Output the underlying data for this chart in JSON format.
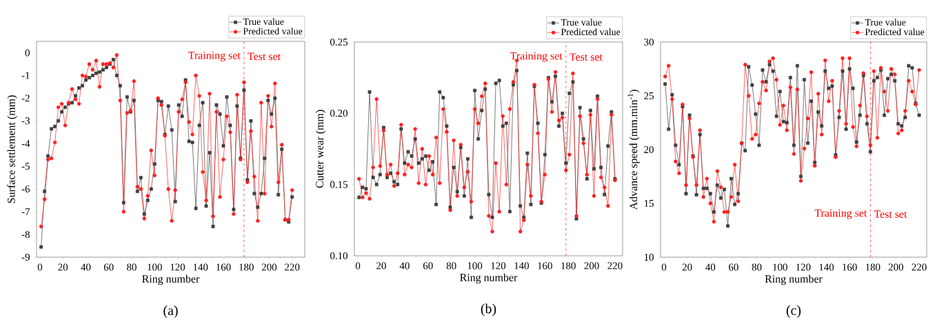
{
  "chart_data": [
    {
      "type": "line",
      "xlabel": "Ring number",
      "ylabel": "Surface settlement (mm)",
      "x": [
        1,
        4,
        7,
        10,
        13,
        16,
        19,
        22,
        25,
        28,
        31,
        34,
        37,
        40,
        43,
        46,
        49,
        52,
        55,
        58,
        61,
        64,
        67,
        70,
        73,
        76,
        79,
        82,
        85,
        88,
        91,
        94,
        97,
        100,
        103,
        106,
        109,
        112,
        115,
        118,
        121,
        124,
        127,
        130,
        133,
        136,
        139,
        142,
        145,
        148,
        151,
        154,
        157,
        160,
        163,
        166,
        169,
        172,
        175,
        178,
        181,
        184,
        187,
        190,
        193,
        196,
        199,
        202,
        205,
        208,
        211,
        214,
        217,
        220
      ],
      "series": [
        {
          "name": "True value",
          "color": "#404040",
          "marker": "square",
          "values": [
            -8.55,
            -6.1,
            -4.55,
            -3.35,
            -3.25,
            -3.0,
            -2.6,
            -2.4,
            -2.25,
            -2.2,
            -1.9,
            -1.55,
            -1.45,
            -1.2,
            -1.1,
            -1.0,
            -0.9,
            -0.85,
            -0.75,
            -0.65,
            -0.5,
            -0.3,
            -1.0,
            -1.45,
            -6.6,
            -1.95,
            -2.6,
            -2.1,
            -6.1,
            -5.5,
            -7.1,
            -6.5,
            -6.0,
            -4.9,
            -2.1,
            -2.15,
            -3.6,
            -2.35,
            -3.4,
            -6.55,
            -2.3,
            -2.8,
            -1.2,
            -3.9,
            -3.95,
            -6.85,
            -3.2,
            -2.2,
            -6.75,
            -4.4,
            -7.65,
            -2.3,
            -2.7,
            -4.1,
            -1.95,
            -3.2,
            -6.9,
            -2.35,
            -4.65,
            -1.65,
            -5.6,
            -3.0,
            -6.2,
            -6.8,
            -6.2,
            -4.65,
            -2.1,
            -2.7,
            -2.0,
            -6.25,
            -4.25,
            -7.35,
            -7.45,
            -6.35
          ]
        },
        {
          "name": "Predicted value",
          "color": "#ff2020",
          "marker": "circle",
          "values": [
            -7.65,
            -6.45,
            -4.7,
            -4.65,
            -3.95,
            -2.4,
            -2.25,
            -3.2,
            -2.2,
            -1.6,
            -2.05,
            -2.25,
            -1.0,
            -1.05,
            -0.5,
            -0.75,
            -0.35,
            -1.5,
            -0.5,
            -0.5,
            -0.45,
            -0.65,
            -0.1,
            -2.1,
            -7.0,
            -2.65,
            -2.55,
            -1.25,
            -5.9,
            -6.0,
            -7.3,
            -6.3,
            -4.3,
            -5.4,
            -2.0,
            -2.3,
            -3.65,
            -6.0,
            -7.4,
            -6.05,
            -2.6,
            -2.05,
            -1.3,
            -3.05,
            -3.6,
            -1.0,
            -1.9,
            -5.25,
            -6.5,
            -1.8,
            -7.2,
            -2.6,
            -6.35,
            -4.7,
            -2.8,
            -3.5,
            -7.1,
            -1.85,
            -4.7,
            -1.3,
            -5.7,
            -3.45,
            -5.45,
            -7.4,
            -2.2,
            -6.2,
            -1.9,
            -3.25,
            -1.35,
            -5.7,
            -4.05,
            -7.35,
            -7.35,
            -6.05
          ]
        }
      ],
      "xlim": [
        -3,
        231
      ],
      "ylim": [
        -9,
        0.5
      ],
      "xticks": [
        0,
        20,
        40,
        60,
        80,
        100,
        120,
        140,
        160,
        180,
        200,
        220
      ],
      "yticks": [
        -9,
        -8,
        -7,
        -6,
        -5,
        -4,
        -3,
        -2,
        -1,
        0
      ],
      "ref_lines": [
        {
          "axis": "x",
          "value": 178,
          "color": "#ff2020",
          "line_style": "dashdot"
        }
      ],
      "annotations": [
        "Training set",
        "Test set",
        "(a)"
      ],
      "legend": "top right"
    },
    {
      "type": "line",
      "xlabel": "Ring number",
      "ylabel": "Cutter wear (mm)",
      "x": [
        1,
        4,
        7,
        10,
        13,
        16,
        19,
        22,
        25,
        28,
        31,
        34,
        37,
        40,
        43,
        46,
        49,
        52,
        55,
        58,
        61,
        64,
        67,
        70,
        73,
        76,
        79,
        82,
        85,
        88,
        91,
        94,
        97,
        100,
        103,
        106,
        109,
        112,
        115,
        118,
        121,
        124,
        127,
        130,
        133,
        136,
        139,
        142,
        145,
        148,
        151,
        154,
        157,
        160,
        163,
        166,
        169,
        172,
        175,
        178,
        181,
        184,
        187,
        190,
        193,
        196,
        199,
        202,
        205,
        208,
        211,
        214,
        217,
        220
      ],
      "series": [
        {
          "name": "True value",
          "color": "#404040",
          "marker": "square",
          "values": [
            0.141,
            0.148,
            0.147,
            0.215,
            0.155,
            0.15,
            0.157,
            0.19,
            0.155,
            0.158,
            0.152,
            0.15,
            0.189,
            0.165,
            0.173,
            0.17,
            0.182,
            0.165,
            0.168,
            0.17,
            0.16,
            0.166,
            0.136,
            0.215,
            0.211,
            0.191,
            0.134,
            0.162,
            0.145,
            0.176,
            0.142,
            0.168,
            0.127,
            0.216,
            0.182,
            0.202,
            0.217,
            0.143,
            0.127,
            0.221,
            0.223,
            0.191,
            0.193,
            0.131,
            0.22,
            0.23,
            0.135,
            0.127,
            0.172,
            0.136,
            0.219,
            0.193,
            0.137,
            0.171,
            0.225,
            0.208,
            0.226,
            0.191,
            0.2,
            0.165,
            0.214,
            0.222,
            0.126,
            0.204,
            0.182,
            0.154,
            0.202,
            0.161,
            0.212,
            0.162,
            0.143,
            0.177,
            0.201,
            0.154
          ]
        },
        {
          "name": "Predicted value",
          "color": "#ff2020",
          "marker": "circle",
          "values": [
            0.154,
            0.141,
            0.144,
            0.14,
            0.162,
            0.21,
            0.163,
            0.188,
            0.157,
            0.164,
            0.149,
            0.158,
            0.192,
            0.157,
            0.164,
            0.162,
            0.189,
            0.151,
            0.175,
            0.15,
            0.17,
            0.157,
            0.183,
            0.151,
            0.203,
            0.187,
            0.132,
            0.181,
            0.142,
            0.178,
            0.148,
            0.159,
            0.138,
            0.203,
            0.193,
            0.212,
            0.221,
            0.128,
            0.117,
            0.165,
            0.131,
            0.198,
            0.15,
            0.203,
            0.222,
            0.237,
            0.117,
            0.125,
            0.164,
            0.142,
            0.22,
            0.186,
            0.138,
            0.157,
            0.224,
            0.201,
            0.229,
            0.195,
            0.197,
            0.16,
            0.171,
            0.228,
            0.128,
            0.198,
            0.179,
            0.157,
            0.199,
            0.142,
            0.21,
            0.155,
            0.148,
            0.135,
            0.199,
            0.153
          ]
        }
      ],
      "xlim": [
        -3,
        226.5
      ],
      "ylim": [
        0.1,
        0.25
      ],
      "xticks": [
        0,
        20,
        40,
        60,
        80,
        100,
        120,
        140,
        160,
        180,
        200,
        220
      ],
      "yticks": [
        {
          "value": 0.1,
          "label": "0.10"
        },
        0.15,
        {
          "value": 0.2,
          "label": "0.20"
        },
        0.25
      ],
      "ref_lines": [
        {
          "axis": "x",
          "value": 178,
          "color": "#ff2020",
          "line_style": "dashdot"
        }
      ],
      "annotations": [
        "Training set",
        "Test set",
        "(b)"
      ],
      "legend": "top right"
    },
    {
      "type": "line",
      "xlabel": "Ring number",
      "ylabel": "Advance speed (mm.min$^{-1}$)",
      "x": [
        1,
        4,
        7,
        10,
        13,
        16,
        19,
        22,
        25,
        28,
        31,
        34,
        37,
        40,
        43,
        46,
        49,
        52,
        55,
        58,
        61,
        64,
        67,
        70,
        73,
        76,
        79,
        82,
        85,
        88,
        91,
        94,
        97,
        100,
        103,
        106,
        109,
        112,
        115,
        118,
        121,
        124,
        127,
        130,
        133,
        136,
        139,
        142,
        145,
        148,
        151,
        154,
        157,
        160,
        163,
        166,
        169,
        172,
        175,
        178,
        181,
        184,
        187,
        190,
        193,
        196,
        199,
        202,
        205,
        208,
        211,
        214,
        217,
        220
      ],
      "series": [
        {
          "name": "True value",
          "color": "#404040",
          "marker": "square",
          "values": [
            26.1,
            21.9,
            25.1,
            20.4,
            18.6,
            24.0,
            15.9,
            23.2,
            19.4,
            15.8,
            21.4,
            16.4,
            16.4,
            15.9,
            14.2,
            16.7,
            15.5,
            16.3,
            12.9,
            17.3,
            14.9,
            15.9,
            20.6,
            19.9,
            27.7,
            26.0,
            23.3,
            20.4,
            27.4,
            26.3,
            27.9,
            27.3,
            23.1,
            25.4,
            22.6,
            22.5,
            26.7,
            20.4,
            27.8,
            17.5,
            26.5,
            20.6,
            24.5,
            18.8,
            23.5,
            22.2,
            27.3,
            25.7,
            25.9,
            19.5,
            23.0,
            27.3,
            21.9,
            27.5,
            25.7,
            20.7,
            23.2,
            26.9,
            22.4,
            19.8,
            26.4,
            26.7,
            27.4,
            23.2,
            26.6,
            27.0,
            26.4,
            22.4,
            22.2,
            23.0,
            27.8,
            27.6,
            24.3,
            23.2
          ]
        },
        {
          "name": "Predicted value",
          "color": "#ff2020",
          "marker": "circle",
          "values": [
            26.8,
            27.8,
            24.7,
            18.9,
            17.8,
            24.2,
            16.7,
            22.9,
            19.3,
            16.7,
            21.8,
            15.6,
            17.3,
            15.0,
            13.3,
            18.0,
            16.5,
            14.2,
            14.2,
            15.6,
            18.6,
            15.2,
            20.6,
            27.9,
            25.0,
            21.0,
            21.4,
            24.3,
            26.3,
            25.5,
            28.2,
            28.5,
            26.5,
            22.3,
            24.1,
            21.8,
            25.8,
            19.6,
            25.6,
            17.1,
            20.1,
            22.9,
            27.2,
            18.5,
            25.2,
            21.4,
            28.3,
            24.5,
            26.4,
            19.3,
            23.6,
            28.5,
            22.4,
            28.5,
            22.1,
            20.3,
            24.1,
            27.1,
            23.1,
            20.4,
            27.3,
            21.1,
            27.6,
            25.4,
            23.6,
            27.5,
            27.0,
            21.5,
            21.8,
            23.6,
            26.4,
            25.4,
            24.2,
            27.4
          ]
        }
      ],
      "xlim": [
        -3,
        226.5
      ],
      "ylim": [
        10,
        30
      ],
      "xticks": [
        0,
        20,
        40,
        60,
        80,
        100,
        120,
        140,
        160,
        180,
        200,
        220
      ],
      "yticks": [
        10,
        15,
        20,
        25,
        30
      ],
      "ref_lines": [
        {
          "axis": "x",
          "value": 178,
          "color": "#ff2020",
          "line_style": "dashdot"
        }
      ],
      "annotations": [
        "Training set",
        "Test set",
        "(c)"
      ],
      "legend": "top right"
    }
  ]
}
